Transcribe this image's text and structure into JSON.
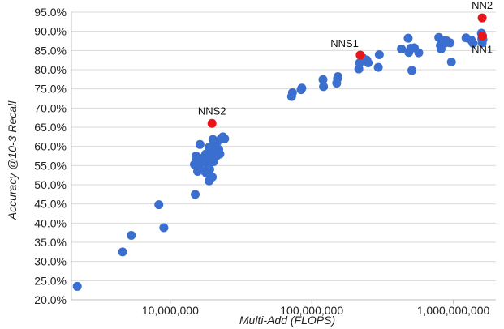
{
  "chart_data": {
    "type": "scatter",
    "title": "",
    "xlabel": "Multi-Add (FLOPS)",
    "ylabel": "Accuracy @10-3 Recall",
    "x_scale": "log",
    "xlim": [
      2000000,
      2000000000
    ],
    "ylim": [
      20,
      95
    ],
    "y_ticks": [
      20,
      25,
      30,
      35,
      40,
      45,
      50,
      55,
      60,
      65,
      70,
      75,
      80,
      85,
      90,
      95
    ],
    "y_tick_labels": [
      "20.0%",
      "25.0%",
      "30.0%",
      "35.0%",
      "40.0%",
      "45.0%",
      "50.0%",
      "55.0%",
      "60.0%",
      "65.0%",
      "70.0%",
      "75.0%",
      "80.0%",
      "85.0%",
      "90.0%",
      "95.0%"
    ],
    "x_ticks": [
      10000000,
      100000000,
      1000000000
    ],
    "x_tick_labels": [
      "10,000,000",
      "100,000,000",
      "1,000,000,000"
    ],
    "grid": "horizontal",
    "colors": {
      "points": "#3a6fcf",
      "highlight": "#e8151b",
      "grid": "#d9d9d9"
    },
    "series": [
      {
        "color": "#3a6fcf",
        "points": [
          [
            2200000,
            23.5
          ],
          [
            4600000,
            32.5
          ],
          [
            5300000,
            36.8
          ],
          [
            8300000,
            44.8
          ],
          [
            9000000,
            38.8
          ],
          [
            15000000,
            47.5
          ],
          [
            14800000,
            55.3
          ],
          [
            15300000,
            56.5
          ],
          [
            15200000,
            57.5
          ],
          [
            15600000,
            53.5
          ],
          [
            16000000,
            54.5
          ],
          [
            16500000,
            55.8
          ],
          [
            17000000,
            56.2
          ],
          [
            17300000,
            57.2
          ],
          [
            17500000,
            53.5
          ],
          [
            17800000,
            58.0
          ],
          [
            18200000,
            55.5
          ],
          [
            18500000,
            56.8
          ],
          [
            18800000,
            59.8
          ],
          [
            18800000,
            51.0
          ],
          [
            19000000,
            54.0
          ],
          [
            19200000,
            57.5
          ],
          [
            19500000,
            58.5
          ],
          [
            19800000,
            52.0
          ],
          [
            20000000,
            61.8
          ],
          [
            20200000,
            56.0
          ],
          [
            20500000,
            59.0
          ],
          [
            21000000,
            60.5
          ],
          [
            21200000,
            57.5
          ],
          [
            21500000,
            61.2
          ],
          [
            22000000,
            59.2
          ],
          [
            22400000,
            58.0
          ],
          [
            22800000,
            62.0
          ],
          [
            23500000,
            62.5
          ],
          [
            24200000,
            62.0
          ],
          [
            16200000,
            60.5
          ],
          [
            18000000,
            53.0
          ],
          [
            72000000,
            73.0
          ],
          [
            73000000,
            74.0
          ],
          [
            84000000,
            74.8
          ],
          [
            85000000,
            75.2
          ],
          [
            120000000,
            77.4
          ],
          [
            121000000,
            75.6
          ],
          [
            150000000,
            76.5
          ],
          [
            152000000,
            77.7
          ],
          [
            153000000,
            78.2
          ],
          [
            215000000,
            80.2
          ],
          [
            218000000,
            81.8
          ],
          [
            230000000,
            83.0
          ],
          [
            245000000,
            82.5
          ],
          [
            250000000,
            81.8
          ],
          [
            295000000,
            80.6
          ],
          [
            300000000,
            83.9
          ],
          [
            430000000,
            85.4
          ],
          [
            480000000,
            88.2
          ],
          [
            485000000,
            84.5
          ],
          [
            500000000,
            85.6
          ],
          [
            510000000,
            79.8
          ],
          [
            530000000,
            85.7
          ],
          [
            570000000,
            84.4
          ],
          [
            790000000,
            88.4
          ],
          [
            810000000,
            86.3
          ],
          [
            820000000,
            85.4
          ],
          [
            860000000,
            87.6
          ],
          [
            880000000,
            87.0
          ],
          [
            900000000,
            87.5
          ],
          [
            950000000,
            87.0
          ],
          [
            970000000,
            82.0
          ],
          [
            1230000000,
            88.3
          ],
          [
            1340000000,
            87.7
          ],
          [
            1380000000,
            86.9
          ],
          [
            1580000000,
            89.5
          ],
          [
            1590000000,
            88.0
          ],
          [
            1600000000,
            87.0
          ],
          [
            1610000000,
            88.8
          ],
          [
            1620000000,
            87.9
          ]
        ]
      },
      {
        "color": "#e8151b",
        "points": [
          [
            19700000,
            66.0
          ],
          [
            220000000,
            83.8
          ],
          [
            1600000000,
            93.5
          ],
          [
            1600000000,
            88.8
          ]
        ]
      }
    ],
    "annotations": [
      {
        "text": "NNS2",
        "x": 19700000,
        "y": 66.0,
        "pos": "above"
      },
      {
        "text": "NNS1",
        "x": 220000000,
        "y": 83.8,
        "pos": "above-left"
      },
      {
        "text": "NN2",
        "x": 1600000000,
        "y": 93.5,
        "pos": "above"
      },
      {
        "text": "NN1",
        "x": 1600000000,
        "y": 88.8,
        "pos": "below"
      }
    ]
  }
}
